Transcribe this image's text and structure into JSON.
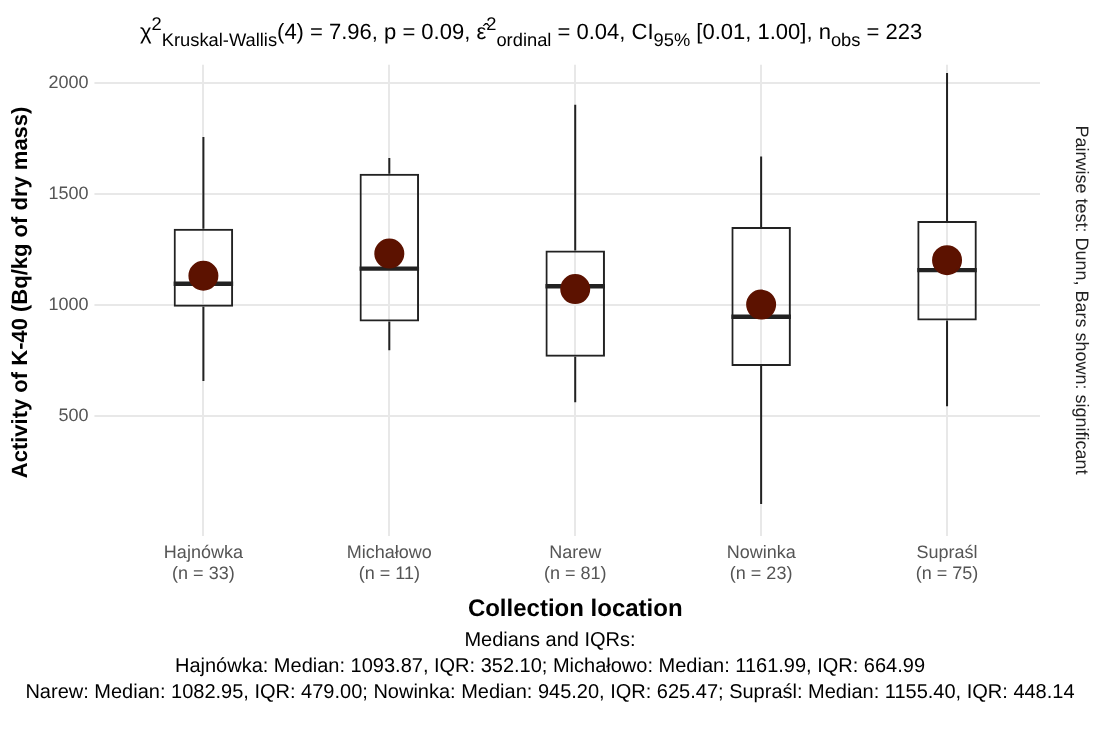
{
  "chart_data": {
    "type": "box",
    "title": "χ$^{2}$$_{Kruskal-Wallis}$(4) = 7.96, p = 0.09, ε̂$^{2}$$_{ordinal}$ = 0.04, CI$_{95%}$ [0.01, 1.00], n$_{obs}$ = 223",
    "xlabel": "Collection location",
    "ylabel": "Activity of K-40 (Bq/kg of dry mass)",
    "categories": [
      "Hajnówka\n(n = 33)",
      "Michałowo\n(n = 11)",
      "Narew\n(n = 81)",
      "Nowinka\n(n = 23)",
      "Supraśl\n(n = 75)"
    ],
    "series": [
      {
        "color": "#222222",
        "boxes": [
          {
            "low": 656,
            "q1": 990,
            "median": 1093.87,
            "q3": 1342,
            "high": 1755
          },
          {
            "low": 794,
            "q1": 924,
            "median": 1161.99,
            "q3": 1589,
            "high": 1660
          },
          {
            "low": 560,
            "q1": 765,
            "median": 1082.95,
            "q3": 1244,
            "high": 1900
          },
          {
            "low": 102,
            "q1": 724,
            "median": 945.2,
            "q3": 1349,
            "high": 1667
          },
          {
            "low": 542,
            "q1": 928,
            "median": 1155.4,
            "q3": 1376,
            "high": 2043
          }
        ]
      },
      {
        "type": "scatter",
        "color": "#5c1200",
        "x": [
          "Hajnówka\n(n = 33)",
          "Michałowo\n(n = 11)",
          "Narew\n(n = 81)",
          "Nowinka\n(n = 23)",
          "Supraśl\n(n = 75)"
        ],
        "values": [
          1130,
          1230,
          1070,
          1000,
          1200
        ]
      }
    ],
    "ylim": [
      30,
      2080
    ],
    "yticks": [
      500,
      1000,
      1500,
      2000
    ],
    "grid": true,
    "marker": "circle",
    "annotations": [
      "Pairwise test: Dunn, Bars shown: significant",
      "Medians and IQRs:",
      "Hajnówka: Median: 1093.87, IQR: 352.10; Michałowo: Median: 1161.99, IQR: 664.99",
      "Narew: Median: 1082.95, IQR: 479.00; Nowinka: Median: 945.20, IQR: 625.47; Supraśl: Median: 1155.40, IQR: 448.14"
    ]
  }
}
